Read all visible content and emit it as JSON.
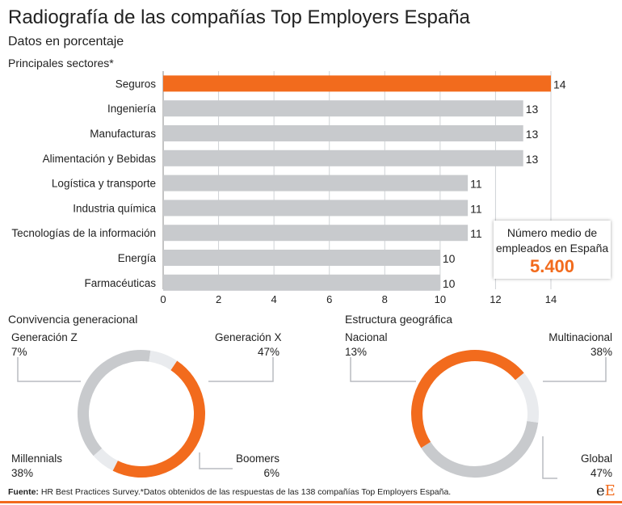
{
  "title": "Radiografía de las compañías Top Employers España",
  "subtitle": "Datos en porcentaje",
  "colors": {
    "highlight": "#f26b1d",
    "bar": "#c8cacd",
    "light": "#e9ebee"
  },
  "chart_data": [
    {
      "type": "bar",
      "orientation": "horizontal",
      "title": "Principales sectores*",
      "categories": [
        "Seguros",
        "Ingeniería",
        "Manufacturas",
        "Alimentación y Bebidas",
        "Logística y transporte",
        "Industria química",
        "Tecnologías de la información",
        "Energía",
        "Farmacéuticas"
      ],
      "values": [
        14,
        13,
        13,
        13,
        11,
        11,
        11,
        10,
        10
      ],
      "highlight_index": 0,
      "xlim": [
        0,
        14
      ],
      "xticks": [
        0,
        2,
        4,
        6,
        8,
        10,
        12,
        14
      ],
      "grid": true
    },
    {
      "type": "pie",
      "donut": true,
      "title": "Convivencia generacional",
      "slices": [
        {
          "name": "Generación X",
          "value": 47,
          "label": "47%"
        },
        {
          "name": "Boomers",
          "value": 6,
          "label": "6%"
        },
        {
          "name": "Millennials",
          "value": 38,
          "label": "38%"
        },
        {
          "name": "Generación Z",
          "value": 7,
          "label": "7%"
        }
      ]
    },
    {
      "type": "pie",
      "donut": true,
      "title": "Estructura geográfica",
      "slices": [
        {
          "name": "Multinacional",
          "value": 38,
          "label": "38%"
        },
        {
          "name": "Global",
          "value": 47,
          "label": "47%"
        },
        {
          "name": "Nacional",
          "value": 13,
          "label": "13%"
        }
      ]
    }
  ],
  "callout": {
    "label": "Número medio de empleados en España",
    "value": "5.400"
  },
  "footer": {
    "source_label": "Fuente:",
    "source_text": " HR Best Practices Survey.*Datos obtenidos de las respuestas de las 138 compañías Top Employers España."
  },
  "logo": {
    "text1": "e",
    "text2": "E"
  }
}
